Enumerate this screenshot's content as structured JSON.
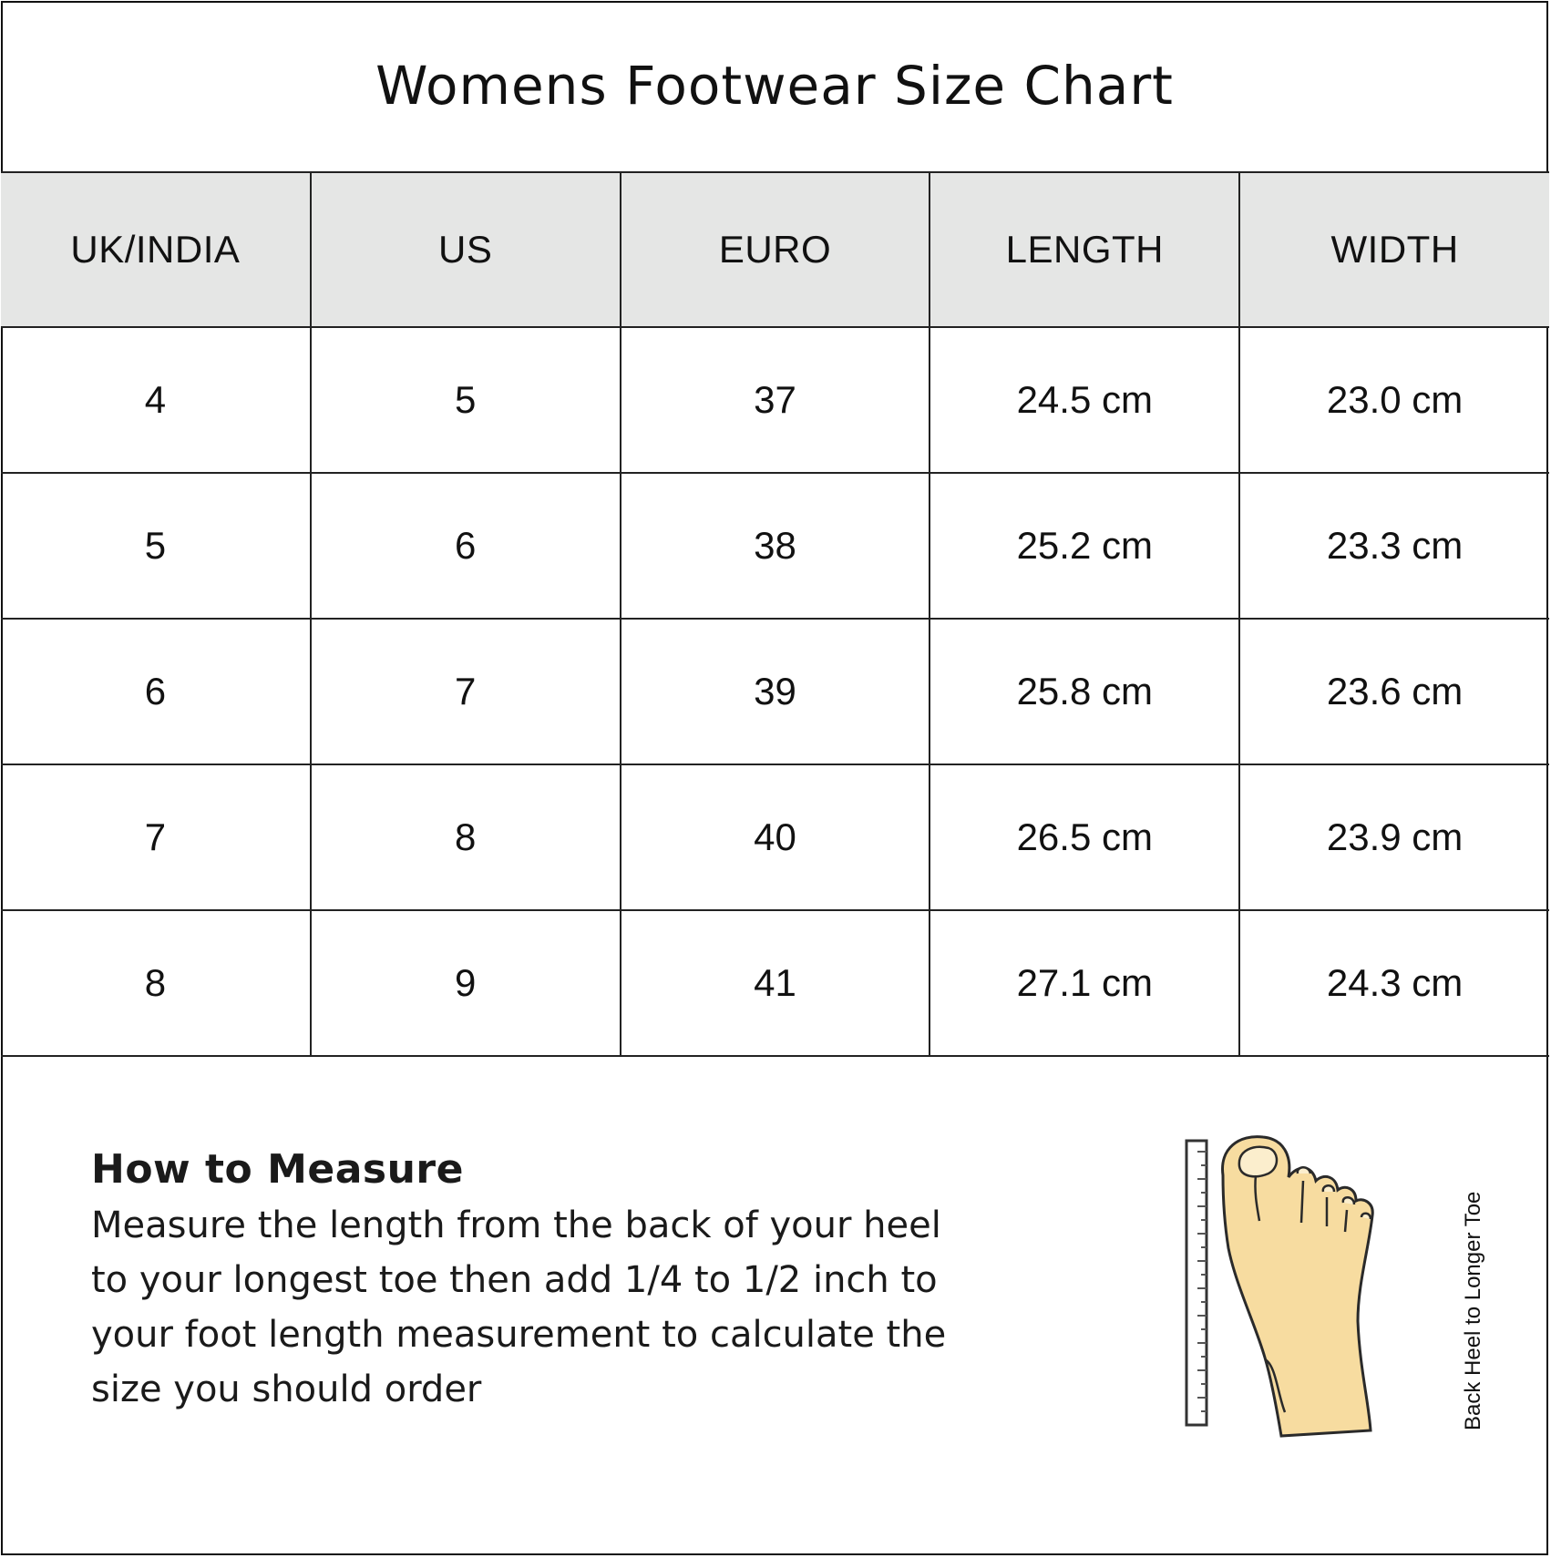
{
  "title": "Womens Footwear Size Chart",
  "chart_data": {
    "type": "table",
    "title": "Womens Footwear Size Chart",
    "columns": [
      "UK/INDIA",
      "US",
      "EURO",
      "LENGTH",
      "WIDTH"
    ],
    "rows": [
      [
        "4",
        "5",
        "37",
        "24.5 cm",
        "23.0 cm"
      ],
      [
        "5",
        "6",
        "38",
        "25.2 cm",
        "23.3 cm"
      ],
      [
        "6",
        "7",
        "39",
        "25.8 cm",
        "23.6 cm"
      ],
      [
        "7",
        "8",
        "40",
        "26.5 cm",
        "23.9 cm"
      ],
      [
        "8",
        "9",
        "41",
        "27.1 cm",
        "24.3 cm"
      ]
    ]
  },
  "colors": {
    "header_bg": "#e5e6e5",
    "border": "#222222",
    "foot_fill": "#f7dca0",
    "foot_stroke": "#2a2a2a"
  },
  "measure": {
    "heading": "How to Measure",
    "lines": [
      "Measure the length from the back of your heel",
      "to your longest toe then add 1/4 to 1/2 inch to",
      "your foot length measurement to calculate the",
      "size you should order"
    ]
  },
  "illustration": {
    "icon": "foot-with-ruler-icon",
    "caption": "Back Heel to Longer Toe"
  }
}
